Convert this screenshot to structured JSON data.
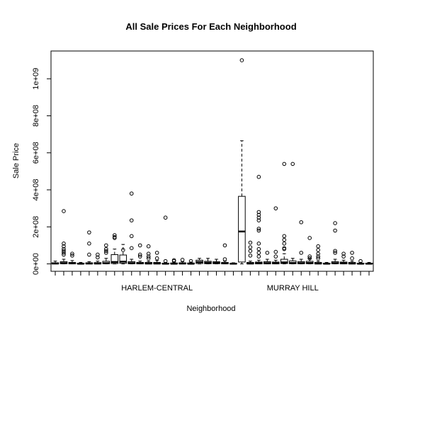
{
  "chart_data": {
    "type": "box",
    "title": "All Sale Prices For Each Neighborhood",
    "xlabel": "Neighborhood",
    "ylabel": "Sale Price",
    "ylim": [
      -40000000,
      1150000000
    ],
    "yticks": [
      0,
      200000000,
      400000000,
      600000000,
      800000000,
      1000000000
    ],
    "ytick_labels": [
      "0e+00",
      "2e+08",
      "4e+08",
      "6e+08",
      "8e+08",
      "1e+09"
    ],
    "labeled_categories": [
      {
        "index": 12,
        "label": "HARLEM-CENTRAL"
      },
      {
        "index": 28,
        "label": "MURRAY HILL"
      }
    ],
    "boxes": [
      {
        "q1": 0,
        "median": 2000000,
        "q3": 6000000,
        "lo": 0,
        "hi": 15000000,
        "out": []
      },
      {
        "q1": 1000000,
        "median": 4000000,
        "q3": 12000000,
        "lo": 0,
        "hi": 25000000,
        "out": [
          285000000,
          110000000,
          95000000,
          80000000,
          70000000,
          60000000,
          50000000
        ]
      },
      {
        "q1": 0,
        "median": 3000000,
        "q3": 8000000,
        "lo": 0,
        "hi": 18000000,
        "out": [
          55000000,
          45000000
        ]
      },
      {
        "q1": 0,
        "median": 1000000,
        "q3": 4000000,
        "lo": 0,
        "hi": 8000000,
        "out": []
      },
      {
        "q1": 0,
        "median": 2000000,
        "q3": 6000000,
        "lo": 0,
        "hi": 12000000,
        "out": [
          170000000,
          110000000,
          50000000
        ]
      },
      {
        "q1": 0,
        "median": 2000000,
        "q3": 7000000,
        "lo": 0,
        "hi": 15000000,
        "out": [
          50000000,
          35000000
        ]
      },
      {
        "q1": 1000000,
        "median": 4000000,
        "q3": 14000000,
        "lo": 0,
        "hi": 30000000,
        "out": [
          100000000,
          80000000,
          70000000,
          60000000
        ]
      },
      {
        "q1": 2000000,
        "median": 10000000,
        "q3": 50000000,
        "lo": 0,
        "hi": 80000000,
        "out": [
          155000000,
          145000000,
          140000000
        ]
      },
      {
        "q1": 3000000,
        "median": 12000000,
        "q3": 48000000,
        "lo": 0,
        "hi": 105000000,
        "out": [
          75000000
        ]
      },
      {
        "q1": 1000000,
        "median": 4000000,
        "q3": 12000000,
        "lo": 0,
        "hi": 25000000,
        "out": [
          380000000,
          235000000,
          150000000,
          85000000
        ]
      },
      {
        "q1": 0,
        "median": 3000000,
        "q3": 8000000,
        "lo": 0,
        "hi": 15000000,
        "out": [
          100000000,
          50000000,
          40000000
        ]
      },
      {
        "q1": 0,
        "median": 2000000,
        "q3": 8000000,
        "lo": 0,
        "hi": 15000000,
        "out": [
          95000000,
          55000000,
          40000000,
          30000000
        ]
      },
      {
        "q1": 0,
        "median": 2000000,
        "q3": 8000000,
        "lo": 0,
        "hi": 18000000,
        "out": [
          60000000,
          30000000
        ]
      },
      {
        "q1": 0,
        "median": 1000000,
        "q3": 4000000,
        "lo": 0,
        "hi": 8000000,
        "out": [
          250000000,
          15000000
        ]
      },
      {
        "q1": 0,
        "median": 1000000,
        "q3": 5000000,
        "lo": 0,
        "hi": 10000000,
        "out": [
          20000000,
          15000000
        ]
      },
      {
        "q1": 0,
        "median": 2000000,
        "q3": 6000000,
        "lo": 0,
        "hi": 12000000,
        "out": [
          22000000
        ]
      },
      {
        "q1": 0,
        "median": 1000000,
        "q3": 5000000,
        "lo": 0,
        "hi": 10000000,
        "out": [
          15000000
        ]
      },
      {
        "q1": 2000000,
        "median": 10000000,
        "q3": 20000000,
        "lo": 0,
        "hi": 30000000,
        "out": []
      },
      {
        "q1": 1000000,
        "median": 6000000,
        "q3": 14000000,
        "lo": 0,
        "hi": 30000000,
        "out": []
      },
      {
        "q1": 1000000,
        "median": 5000000,
        "q3": 12000000,
        "lo": 0,
        "hi": 25000000,
        "out": []
      },
      {
        "q1": 0,
        "median": 3000000,
        "q3": 8000000,
        "lo": 0,
        "hi": 15000000,
        "out": [
          100000000,
          25000000
        ]
      },
      {
        "q1": 0,
        "median": 1000000,
        "q3": 3000000,
        "lo": 0,
        "hi": 6000000,
        "out": []
      },
      {
        "q1": 10000000,
        "median": 175000000,
        "q3": 365000000,
        "lo": 0,
        "hi": 665000000,
        "out": [
          1100000000
        ]
      },
      {
        "q1": 0,
        "median": 2000000,
        "q3": 8000000,
        "lo": 0,
        "hi": 15000000,
        "out": [
          115000000,
          90000000,
          70000000,
          45000000
        ]
      },
      {
        "q1": 0,
        "median": 3000000,
        "q3": 10000000,
        "lo": 0,
        "hi": 20000000,
        "out": [
          470000000,
          280000000,
          265000000,
          250000000,
          235000000,
          190000000,
          180000000,
          110000000,
          80000000,
          60000000,
          40000000
        ]
      },
      {
        "q1": 0,
        "median": 4000000,
        "q3": 12000000,
        "lo": 0,
        "hi": 25000000,
        "out": [
          60000000
        ]
      },
      {
        "q1": 0,
        "median": 3000000,
        "q3": 10000000,
        "lo": 0,
        "hi": 20000000,
        "out": [
          300000000,
          65000000,
          40000000
        ]
      },
      {
        "q1": 2000000,
        "median": 8000000,
        "q3": 25000000,
        "lo": 0,
        "hi": 55000000,
        "out": [
          540000000,
          150000000,
          130000000,
          110000000,
          85000000,
          80000000
        ]
      },
      {
        "q1": 1000000,
        "median": 5000000,
        "q3": 16000000,
        "lo": 0,
        "hi": 30000000,
        "out": [
          540000000
        ]
      },
      {
        "q1": 1000000,
        "median": 4000000,
        "q3": 12000000,
        "lo": 0,
        "hi": 25000000,
        "out": [
          225000000,
          60000000
        ]
      },
      {
        "q1": 1000000,
        "median": 5000000,
        "q3": 14000000,
        "lo": 0,
        "hi": 28000000,
        "out": [
          140000000,
          40000000,
          30000000
        ]
      },
      {
        "q1": 0,
        "median": 2000000,
        "q3": 8000000,
        "lo": 0,
        "hi": 15000000,
        "out": [
          95000000,
          75000000,
          55000000,
          40000000,
          30000000
        ]
      },
      {
        "q1": 0,
        "median": 1000000,
        "q3": 4000000,
        "lo": 0,
        "hi": 8000000,
        "out": []
      },
      {
        "q1": 1000000,
        "median": 4000000,
        "q3": 12000000,
        "lo": 0,
        "hi": 25000000,
        "out": [
          220000000,
          180000000,
          70000000,
          60000000
        ]
      },
      {
        "q1": 0,
        "median": 3000000,
        "q3": 10000000,
        "lo": 0,
        "hi": 20000000,
        "out": [
          55000000,
          40000000
        ]
      },
      {
        "q1": 0,
        "median": 2000000,
        "q3": 8000000,
        "lo": 0,
        "hi": 15000000,
        "out": [
          60000000,
          30000000
        ]
      },
      {
        "q1": 0,
        "median": 1000000,
        "q3": 4000000,
        "lo": 0,
        "hi": 8000000,
        "out": [
          15000000
        ]
      },
      {
        "q1": 0,
        "median": 1000000,
        "q3": 4000000,
        "lo": 0,
        "hi": 8000000,
        "out": []
      }
    ]
  }
}
